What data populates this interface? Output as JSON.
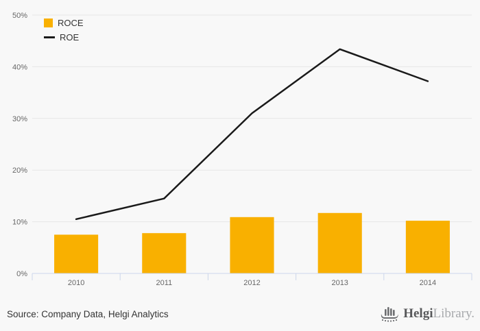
{
  "chart_data": {
    "type": "combo",
    "categories": [
      "2010",
      "2011",
      "2012",
      "2013",
      "2014"
    ],
    "series": [
      {
        "name": "ROCE",
        "type": "bar",
        "color": "#F9B000",
        "values": [
          7.5,
          7.8,
          10.9,
          11.7,
          10.2
        ]
      },
      {
        "name": "ROE",
        "type": "line",
        "color": "#1A1A1A",
        "values": [
          10.5,
          14.5,
          31.0,
          43.4,
          37.2
        ]
      }
    ],
    "ylim": [
      0,
      50
    ],
    "yticks": [
      0,
      10,
      20,
      30,
      40,
      50
    ],
    "ytick_suffix": "%",
    "grid": true,
    "legend_position": "top-left"
  },
  "colors": {
    "background": "#f8f8f8",
    "gridline": "#e6e6e6",
    "axis_line": "#ccd6eb",
    "tick_label": "#666666",
    "bar": "#F9B000",
    "line": "#1A1A1A",
    "source_text": "#333333",
    "logo_dark": "#58595b",
    "logo_light": "#a7a9ac",
    "logo_icon": "#6d6e71"
  },
  "footer": {
    "source": "Source: Company Data, Helgi Analytics",
    "logo": {
      "brand_bold": "Helgi",
      "brand_light": "Library."
    }
  }
}
